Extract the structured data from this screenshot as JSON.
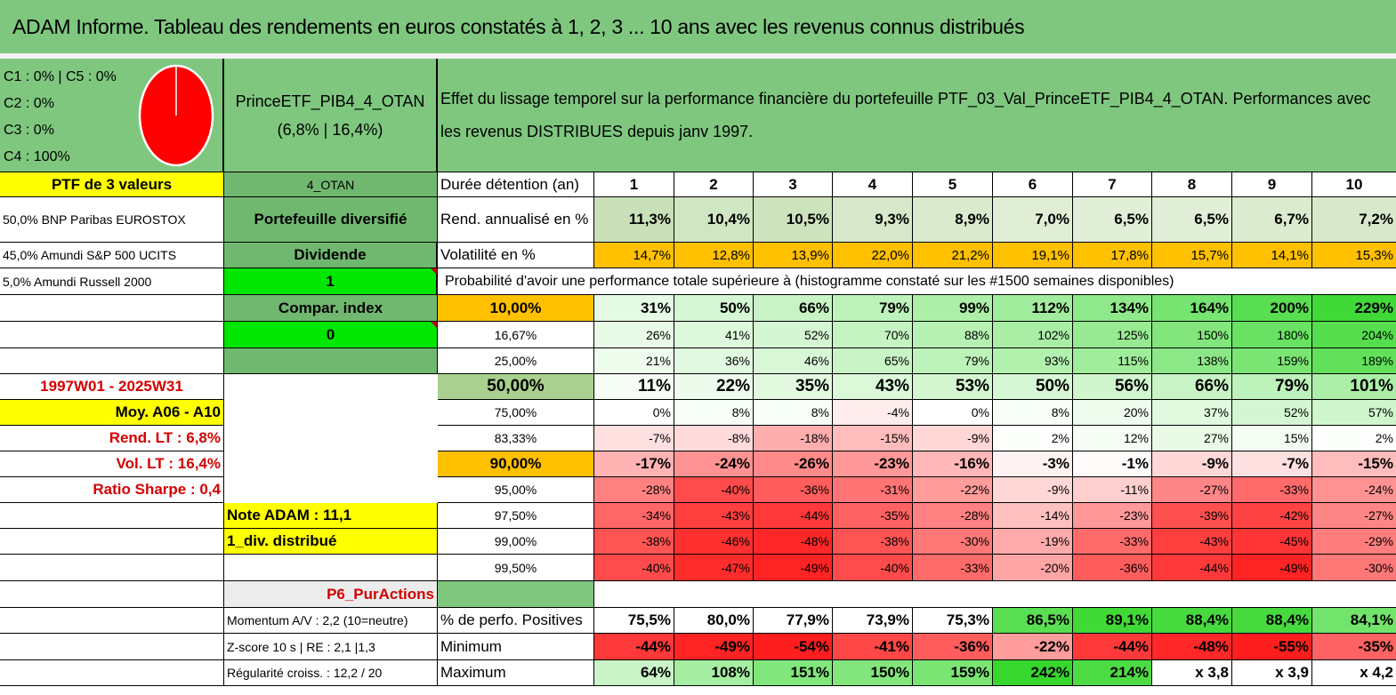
{
  "title": "ADAM Informe. Tableau des rendements en euros constatés à 1, 2, 3 ... 10 ans avec les revenus connus distribués",
  "allocation": {
    "lines": [
      "C1 : 0% | C5 : 0%",
      "C2 : 0%",
      "C3 : 0%",
      "C4 : 100%"
    ],
    "pie_fraction_c4": 1.0,
    "pie_color": "#ff0000"
  },
  "portfolio": {
    "name": "PrinceETF_PIB4_4_OTAN",
    "stats": "(6,8% | 16,4%)"
  },
  "description": "Effet du lissage temporel sur la performance financière du portefeuille PTF_03_Val_PrinceETF_PIB4_4_OTAN. Performances avec les revenus DISTRIBUES depuis janv 1997.",
  "left": {
    "ptf_label": "PTF de 3 valeurs",
    "holdings": [
      "50,0% BNP Paribas EUROSTOX",
      "45,0% Amundi S&P 500 UCITS",
      "5,0% Amundi Russell 2000"
    ],
    "period": "1997W01 - 2025W31",
    "moy": "Moy. A06 - A10",
    "rend_lt": "Rend. LT : 6,8%",
    "vol_lt": "Vol. LT : 16,4%",
    "sharpe": "Ratio Sharpe : 0,4",
    "note": "Note ADAM : 11,1",
    "div": "1_div. distribué",
    "momentum": "Momentum A/V : 2,2 (10=neutre)",
    "zscore": "Z-score 10 s | RE : 2,1 |1,3",
    "regularite": "Régularité croiss. : 12,2 / 20"
  },
  "mid": {
    "otan": "4_OTAN",
    "diversifie": "Portefeuille diversifié",
    "dividende": "Dividende",
    "one": "1",
    "compar": "Compar. index",
    "zero": "0",
    "p6": "P6_PurActions"
  },
  "table": {
    "durations_label": "Durée détention (an)",
    "years": [
      "1",
      "2",
      "3",
      "4",
      "5",
      "6",
      "7",
      "8",
      "9",
      "10"
    ],
    "rend_label": "Rend. annualisé en %",
    "rend": [
      "11,3%",
      "10,4%",
      "10,5%",
      "9,3%",
      "8,9%",
      "7,0%",
      "6,5%",
      "6,5%",
      "6,7%",
      "7,2%"
    ],
    "vol_label": "Volatilité en %",
    "vol": [
      "14,7%",
      "12,8%",
      "13,9%",
      "22,0%",
      "21,2%",
      "19,1%",
      "17,8%",
      "15,7%",
      "14,1%",
      "15,3%"
    ],
    "proba_label": "Probabilité d'avoir une performance totale supérieure à (histogramme constaté sur les #1500 semaines disponibles)",
    "prob_rows": [
      {
        "p": "10,00%",
        "v": [
          "31%",
          "50%",
          "66%",
          "79%",
          "99%",
          "112%",
          "134%",
          "164%",
          "200%",
          "229%"
        ]
      },
      {
        "p": "16,67%",
        "v": [
          "26%",
          "41%",
          "52%",
          "70%",
          "88%",
          "102%",
          "125%",
          "150%",
          "180%",
          "204%"
        ]
      },
      {
        "p": "25,00%",
        "v": [
          "21%",
          "36%",
          "46%",
          "65%",
          "79%",
          "93%",
          "115%",
          "138%",
          "159%",
          "189%"
        ]
      },
      {
        "p": "50,00%",
        "v": [
          "11%",
          "22%",
          "35%",
          "43%",
          "53%",
          "50%",
          "56%",
          "66%",
          "79%",
          "101%"
        ]
      },
      {
        "p": "75,00%",
        "v": [
          "0%",
          "8%",
          "8%",
          "-4%",
          "0%",
          "8%",
          "20%",
          "37%",
          "52%",
          "57%"
        ]
      },
      {
        "p": "83,33%",
        "v": [
          "-7%",
          "-8%",
          "-18%",
          "-15%",
          "-9%",
          "2%",
          "12%",
          "27%",
          "15%",
          "2%"
        ]
      },
      {
        "p": "90,00%",
        "v": [
          "-17%",
          "-24%",
          "-26%",
          "-23%",
          "-16%",
          "-3%",
          "-1%",
          "-9%",
          "-7%",
          "-15%"
        ]
      },
      {
        "p": "95,00%",
        "v": [
          "-28%",
          "-40%",
          "-36%",
          "-31%",
          "-22%",
          "-9%",
          "-11%",
          "-27%",
          "-33%",
          "-24%"
        ]
      },
      {
        "p": "97,50%",
        "v": [
          "-34%",
          "-43%",
          "-44%",
          "-35%",
          "-28%",
          "-14%",
          "-23%",
          "-39%",
          "-42%",
          "-27%"
        ]
      },
      {
        "p": "99,00%",
        "v": [
          "-38%",
          "-46%",
          "-48%",
          "-38%",
          "-30%",
          "-19%",
          "-33%",
          "-43%",
          "-45%",
          "-29%"
        ]
      },
      {
        "p": "99,50%",
        "v": [
          "-40%",
          "-47%",
          "-49%",
          "-40%",
          "-33%",
          "-20%",
          "-36%",
          "-44%",
          "-49%",
          "-30%"
        ]
      }
    ],
    "pos_label": "% de perfo. Positives",
    "pos": [
      "75,5%",
      "80,0%",
      "77,9%",
      "73,9%",
      "75,3%",
      "86,5%",
      "89,1%",
      "88,4%",
      "88,4%",
      "84,1%"
    ],
    "min_label": "Minimum",
    "min": [
      "-44%",
      "-49%",
      "-54%",
      "-41%",
      "-36%",
      "-22%",
      "-44%",
      "-48%",
      "-55%",
      "-35%"
    ],
    "max_label": "Maximum",
    "max": [
      "64%",
      "108%",
      "151%",
      "150%",
      "159%",
      "242%",
      "214%",
      "x 3,8",
      "x 3,9",
      "x 4,2"
    ]
  },
  "colors": {
    "title_green": "#7fc77f",
    "yellow": "#ffff00",
    "orange": "#ffc000",
    "bright_green": "#00e600",
    "gray_green": "#70b870",
    "light_gray": "#ececec"
  }
}
